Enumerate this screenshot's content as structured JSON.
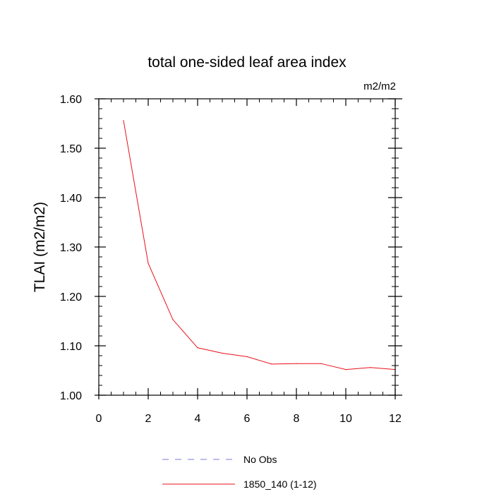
{
  "chart_data": {
    "type": "line",
    "title": "total one-sided leaf area index",
    "units": "m2/m2",
    "ylabel": "TLAI  (m2/m2)",
    "xlabel": "",
    "xlim": [
      0,
      12
    ],
    "ylim": [
      1.0,
      1.6
    ],
    "xticks": [
      0,
      2,
      4,
      6,
      8,
      10,
      12
    ],
    "xtick_labels": [
      "0",
      "2",
      "4",
      "6",
      "8",
      "10",
      "12"
    ],
    "yticks": [
      1.0,
      1.1,
      1.2,
      1.3,
      1.4,
      1.5,
      1.6
    ],
    "ytick_labels": [
      "1.00",
      "1.10",
      "1.20",
      "1.30",
      "1.40",
      "1.50",
      "1.60"
    ],
    "grid": false,
    "legend_position": "bottom-center",
    "series": [
      {
        "name": "No Obs",
        "style": "dashed",
        "color": "#7b7bd6",
        "x": [],
        "y": []
      },
      {
        "name": "1850_140 (1-12)",
        "style": "solid",
        "color": "#e8101a",
        "x": [
          1,
          2,
          3,
          4,
          5,
          6,
          7,
          8,
          9,
          10,
          11,
          12
        ],
        "y": [
          1.556,
          1.267,
          1.153,
          1.096,
          1.085,
          1.078,
          1.063,
          1.064,
          1.064,
          1.052,
          1.056,
          1.052
        ]
      }
    ]
  }
}
